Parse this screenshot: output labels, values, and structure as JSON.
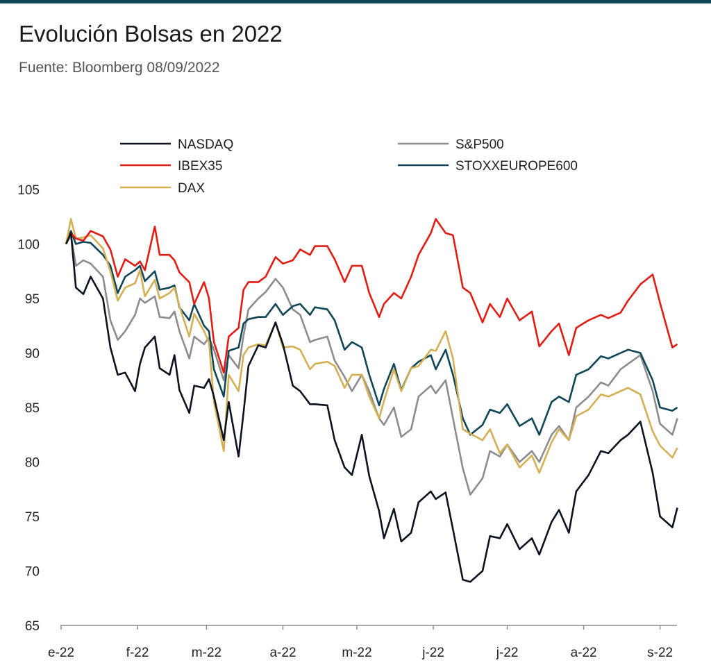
{
  "title": "Evolución Bolsas en 2022",
  "subtitle": "Fuente: Bloomberg 08/09/2022",
  "colors": {
    "rule": "#0e4658"
  },
  "chart_data": {
    "type": "line",
    "ylim": [
      65,
      105
    ],
    "yticks": [
      "105",
      "100",
      "95",
      "90",
      "85",
      "80",
      "75",
      "70",
      "65"
    ],
    "xlim": [
      "2022-01-03",
      "2022-09-08"
    ],
    "xtick_labels": [
      "e-22",
      "f-22",
      "m-22",
      "a-22",
      "m-22",
      "j-22",
      "j-22",
      "a-22",
      "s-22"
    ],
    "xtick_dates": [
      "2022-01-01",
      "2022-02-01",
      "2022-03-01",
      "2022-04-01",
      "2022-05-01",
      "2022-06-01",
      "2022-07-01",
      "2022-08-01",
      "2022-09-01"
    ],
    "grid": false,
    "legend": "top",
    "series": [
      {
        "name": "NASDAQ",
        "color": "#0b1220",
        "dates": [
          "2022-01-03",
          "2022-01-05",
          "2022-01-07",
          "2022-01-10",
          "2022-01-13",
          "2022-01-18",
          "2022-01-21",
          "2022-01-24",
          "2022-01-27",
          "2022-01-31",
          "2022-02-02",
          "2022-02-04",
          "2022-02-08",
          "2022-02-10",
          "2022-02-14",
          "2022-02-16",
          "2022-02-18",
          "2022-02-22",
          "2022-02-24",
          "2022-02-28",
          "2022-03-02",
          "2022-03-04",
          "2022-03-08",
          "2022-03-10",
          "2022-03-14",
          "2022-03-16",
          "2022-03-18",
          "2022-03-22",
          "2022-03-25",
          "2022-03-29",
          "2022-04-01",
          "2022-04-05",
          "2022-04-08",
          "2022-04-12",
          "2022-04-14",
          "2022-04-19",
          "2022-04-22",
          "2022-04-26",
          "2022-04-29",
          "2022-05-03",
          "2022-05-06",
          "2022-05-10",
          "2022-05-12",
          "2022-05-16",
          "2022-05-19",
          "2022-05-23",
          "2022-05-26",
          "2022-05-31",
          "2022-06-02",
          "2022-06-06",
          "2022-06-09",
          "2022-06-13",
          "2022-06-16",
          "2022-06-21",
          "2022-06-24",
          "2022-06-28",
          "2022-07-01",
          "2022-07-06",
          "2022-07-11",
          "2022-07-14",
          "2022-07-19",
          "2022-07-22",
          "2022-07-26",
          "2022-07-29",
          "2022-08-03",
          "2022-08-08",
          "2022-08-11",
          "2022-08-16",
          "2022-08-19",
          "2022-08-24",
          "2022-08-29",
          "2022-09-01",
          "2022-09-06",
          "2022-09-08"
        ],
        "values": [
          100.0,
          101.0,
          96.0,
          95.4,
          97.0,
          95.0,
          90.5,
          88.0,
          88.2,
          86.5,
          89.0,
          90.5,
          91.5,
          88.6,
          88.0,
          89.8,
          86.6,
          84.5,
          87.0,
          86.8,
          87.6,
          86.0,
          82.0,
          85.5,
          80.5,
          84.5,
          88.8,
          90.7,
          90.5,
          92.8,
          90.8,
          87.0,
          86.5,
          85.3,
          85.3,
          85.2,
          82.0,
          79.5,
          78.8,
          82.5,
          78.7,
          75.5,
          73.0,
          75.7,
          72.7,
          73.5,
          76.3,
          77.3,
          76.6,
          77.2,
          73.8,
          69.2,
          69.0,
          70.0,
          73.2,
          73.0,
          74.3,
          72.0,
          73.0,
          71.5,
          74.5,
          75.6,
          73.5,
          77.3,
          78.8,
          81.0,
          80.8,
          82.0,
          82.5,
          83.7,
          79.0,
          75.0,
          74.0,
          75.8
        ]
      },
      {
        "name": "S&P500",
        "color": "#8c8c8c",
        "dates": [
          "2022-01-03",
          "2022-01-05",
          "2022-01-07",
          "2022-01-10",
          "2022-01-13",
          "2022-01-18",
          "2022-01-21",
          "2022-01-24",
          "2022-01-27",
          "2022-01-31",
          "2022-02-02",
          "2022-02-04",
          "2022-02-08",
          "2022-02-10",
          "2022-02-14",
          "2022-02-16",
          "2022-02-18",
          "2022-02-22",
          "2022-02-24",
          "2022-02-28",
          "2022-03-02",
          "2022-03-04",
          "2022-03-08",
          "2022-03-10",
          "2022-03-14",
          "2022-03-16",
          "2022-03-18",
          "2022-03-22",
          "2022-03-25",
          "2022-03-29",
          "2022-04-01",
          "2022-04-05",
          "2022-04-08",
          "2022-04-12",
          "2022-04-14",
          "2022-04-19",
          "2022-04-22",
          "2022-04-26",
          "2022-04-29",
          "2022-05-03",
          "2022-05-06",
          "2022-05-10",
          "2022-05-12",
          "2022-05-16",
          "2022-05-19",
          "2022-05-23",
          "2022-05-26",
          "2022-05-31",
          "2022-06-02",
          "2022-06-06",
          "2022-06-09",
          "2022-06-13",
          "2022-06-16",
          "2022-06-21",
          "2022-06-24",
          "2022-06-28",
          "2022-07-01",
          "2022-07-06",
          "2022-07-11",
          "2022-07-14",
          "2022-07-19",
          "2022-07-22",
          "2022-07-26",
          "2022-07-29",
          "2022-08-03",
          "2022-08-08",
          "2022-08-11",
          "2022-08-16",
          "2022-08-19",
          "2022-08-24",
          "2022-08-29",
          "2022-09-01",
          "2022-09-06",
          "2022-09-08"
        ],
        "values": [
          100.0,
          100.8,
          98.0,
          98.5,
          98.2,
          97.0,
          93.0,
          91.2,
          92.0,
          93.5,
          95.0,
          94.6,
          95.2,
          93.3,
          93.2,
          93.8,
          92.0,
          89.5,
          91.5,
          90.8,
          91.4,
          90.3,
          87.5,
          89.8,
          88.6,
          91.6,
          94.0,
          95.0,
          95.6,
          96.8,
          96.0,
          94.0,
          93.5,
          91.0,
          91.2,
          91.5,
          89.3,
          87.8,
          86.5,
          88.0,
          86.5,
          84.0,
          83.4,
          85.0,
          82.3,
          83.0,
          86.0,
          87.0,
          86.3,
          87.5,
          84.0,
          79.4,
          77.0,
          78.5,
          81.0,
          80.5,
          81.6,
          80.0,
          81.0,
          80.0,
          82.5,
          83.3,
          82.0,
          85.0,
          86.0,
          87.3,
          87.0,
          88.5,
          89.0,
          89.8,
          86.5,
          83.5,
          82.5,
          84.0
        ]
      },
      {
        "name": "IBEX35",
        "color": "#e41b13",
        "dates": [
          "2022-01-03",
          "2022-01-05",
          "2022-01-07",
          "2022-01-10",
          "2022-01-13",
          "2022-01-18",
          "2022-01-21",
          "2022-01-24",
          "2022-01-27",
          "2022-01-31",
          "2022-02-02",
          "2022-02-04",
          "2022-02-08",
          "2022-02-10",
          "2022-02-14",
          "2022-02-16",
          "2022-02-18",
          "2022-02-22",
          "2022-02-24",
          "2022-02-28",
          "2022-03-02",
          "2022-03-04",
          "2022-03-08",
          "2022-03-10",
          "2022-03-14",
          "2022-03-16",
          "2022-03-18",
          "2022-03-22",
          "2022-03-25",
          "2022-03-29",
          "2022-04-01",
          "2022-04-05",
          "2022-04-08",
          "2022-04-12",
          "2022-04-14",
          "2022-04-19",
          "2022-04-22",
          "2022-04-26",
          "2022-04-29",
          "2022-05-03",
          "2022-05-06",
          "2022-05-10",
          "2022-05-12",
          "2022-05-16",
          "2022-05-19",
          "2022-05-23",
          "2022-05-26",
          "2022-05-31",
          "2022-06-02",
          "2022-06-06",
          "2022-06-09",
          "2022-06-13",
          "2022-06-16",
          "2022-06-21",
          "2022-06-24",
          "2022-06-28",
          "2022-07-01",
          "2022-07-06",
          "2022-07-11",
          "2022-07-14",
          "2022-07-19",
          "2022-07-22",
          "2022-07-26",
          "2022-07-29",
          "2022-08-03",
          "2022-08-08",
          "2022-08-11",
          "2022-08-16",
          "2022-08-19",
          "2022-08-24",
          "2022-08-29",
          "2022-09-01",
          "2022-09-06",
          "2022-09-08"
        ],
        "values": [
          100.0,
          101.0,
          100.5,
          100.3,
          101.2,
          100.7,
          99.5,
          97.0,
          98.6,
          98.0,
          98.4,
          97.6,
          101.6,
          99.0,
          99.0,
          98.5,
          97.4,
          96.5,
          94.5,
          96.5,
          95.0,
          91.0,
          88.2,
          91.5,
          92.3,
          95.8,
          96.5,
          96.5,
          97.0,
          98.8,
          98.2,
          98.5,
          99.5,
          99.0,
          99.8,
          99.8,
          98.6,
          96.5,
          98.0,
          98.0,
          95.5,
          93.3,
          94.5,
          95.5,
          95.0,
          97.0,
          99.0,
          101.0,
          102.3,
          101.0,
          100.8,
          96.0,
          95.5,
          92.8,
          94.5,
          93.3,
          95.0,
          93.0,
          93.8,
          90.6,
          92.0,
          92.7,
          89.8,
          92.3,
          93.0,
          93.5,
          93.2,
          93.7,
          94.8,
          96.3,
          97.2,
          94.6,
          90.5,
          90.8
        ]
      },
      {
        "name": "STOXXEUROPE600",
        "color": "#0e4658",
        "dates": [
          "2022-01-03",
          "2022-01-05",
          "2022-01-07",
          "2022-01-10",
          "2022-01-13",
          "2022-01-18",
          "2022-01-21",
          "2022-01-24",
          "2022-01-27",
          "2022-01-31",
          "2022-02-02",
          "2022-02-04",
          "2022-02-08",
          "2022-02-10",
          "2022-02-14",
          "2022-02-16",
          "2022-02-18",
          "2022-02-22",
          "2022-02-24",
          "2022-02-28",
          "2022-03-02",
          "2022-03-04",
          "2022-03-08",
          "2022-03-10",
          "2022-03-14",
          "2022-03-16",
          "2022-03-18",
          "2022-03-22",
          "2022-03-25",
          "2022-03-29",
          "2022-04-01",
          "2022-04-05",
          "2022-04-08",
          "2022-04-12",
          "2022-04-14",
          "2022-04-19",
          "2022-04-22",
          "2022-04-26",
          "2022-04-29",
          "2022-05-03",
          "2022-05-06",
          "2022-05-10",
          "2022-05-12",
          "2022-05-16",
          "2022-05-19",
          "2022-05-23",
          "2022-05-26",
          "2022-05-31",
          "2022-06-02",
          "2022-06-06",
          "2022-06-09",
          "2022-06-13",
          "2022-06-16",
          "2022-06-21",
          "2022-06-24",
          "2022-06-28",
          "2022-07-01",
          "2022-07-06",
          "2022-07-11",
          "2022-07-14",
          "2022-07-19",
          "2022-07-22",
          "2022-07-26",
          "2022-07-29",
          "2022-08-03",
          "2022-08-08",
          "2022-08-11",
          "2022-08-16",
          "2022-08-19",
          "2022-08-24",
          "2022-08-29",
          "2022-09-01",
          "2022-09-06",
          "2022-09-08"
        ],
        "values": [
          100.0,
          101.2,
          100.0,
          100.2,
          100.1,
          99.0,
          98.0,
          95.5,
          97.0,
          97.6,
          98.0,
          96.6,
          97.5,
          95.8,
          96.0,
          96.2,
          94.2,
          93.0,
          94.5,
          92.5,
          92.0,
          88.5,
          86.0,
          90.2,
          90.5,
          92.7,
          93.1,
          93.3,
          93.3,
          94.5,
          93.5,
          94.3,
          94.5,
          93.5,
          94.2,
          94.0,
          93.0,
          90.3,
          91.0,
          90.5,
          88.0,
          85.2,
          86.7,
          89.0,
          86.6,
          88.6,
          89.2,
          89.8,
          88.5,
          90.3,
          88.0,
          84.0,
          82.5,
          83.4,
          84.8,
          84.5,
          85.3,
          83.3,
          84.0,
          82.5,
          85.5,
          86.0,
          85.5,
          88.0,
          88.5,
          89.7,
          89.5,
          90.0,
          90.3,
          90.0,
          87.5,
          85.0,
          84.7,
          85.0
        ]
      },
      {
        "name": "DAX",
        "color": "#d4af53",
        "dates": [
          "2022-01-03",
          "2022-01-05",
          "2022-01-07",
          "2022-01-10",
          "2022-01-13",
          "2022-01-18",
          "2022-01-21",
          "2022-01-24",
          "2022-01-27",
          "2022-01-31",
          "2022-02-02",
          "2022-02-04",
          "2022-02-08",
          "2022-02-10",
          "2022-02-14",
          "2022-02-16",
          "2022-02-18",
          "2022-02-22",
          "2022-02-24",
          "2022-02-28",
          "2022-03-02",
          "2022-03-04",
          "2022-03-08",
          "2022-03-10",
          "2022-03-14",
          "2022-03-16",
          "2022-03-18",
          "2022-03-22",
          "2022-03-25",
          "2022-03-29",
          "2022-04-01",
          "2022-04-05",
          "2022-04-08",
          "2022-04-12",
          "2022-04-14",
          "2022-04-19",
          "2022-04-22",
          "2022-04-26",
          "2022-04-29",
          "2022-05-03",
          "2022-05-06",
          "2022-05-10",
          "2022-05-12",
          "2022-05-16",
          "2022-05-19",
          "2022-05-23",
          "2022-05-26",
          "2022-05-31",
          "2022-06-02",
          "2022-06-06",
          "2022-06-09",
          "2022-06-13",
          "2022-06-16",
          "2022-06-21",
          "2022-06-24",
          "2022-06-28",
          "2022-07-01",
          "2022-07-06",
          "2022-07-11",
          "2022-07-14",
          "2022-07-19",
          "2022-07-22",
          "2022-07-26",
          "2022-07-29",
          "2022-08-03",
          "2022-08-08",
          "2022-08-11",
          "2022-08-16",
          "2022-08-19",
          "2022-08-24",
          "2022-08-29",
          "2022-09-01",
          "2022-09-06",
          "2022-09-08"
        ],
        "values": [
          100.0,
          102.3,
          100.5,
          100.6,
          100.8,
          99.6,
          97.5,
          94.8,
          96.0,
          96.4,
          97.6,
          95.2,
          96.7,
          95.0,
          95.5,
          96.0,
          94.3,
          91.5,
          93.6,
          92.0,
          91.0,
          85.5,
          81.0,
          88.0,
          86.5,
          89.8,
          90.5,
          90.8,
          90.7,
          92.8,
          90.5,
          90.6,
          90.3,
          88.5,
          89.0,
          89.2,
          88.8,
          86.8,
          88.0,
          88.0,
          86.0,
          84.0,
          85.6,
          88.5,
          86.5,
          88.6,
          88.8,
          90.3,
          90.2,
          92.0,
          89.5,
          83.0,
          82.6,
          82.0,
          83.0,
          80.8,
          81.6,
          79.5,
          80.6,
          79.0,
          81.8,
          83.0,
          82.0,
          84.2,
          84.8,
          86.2,
          86.0,
          86.5,
          86.8,
          86.2,
          82.8,
          81.5,
          80.4,
          81.3
        ]
      }
    ]
  }
}
